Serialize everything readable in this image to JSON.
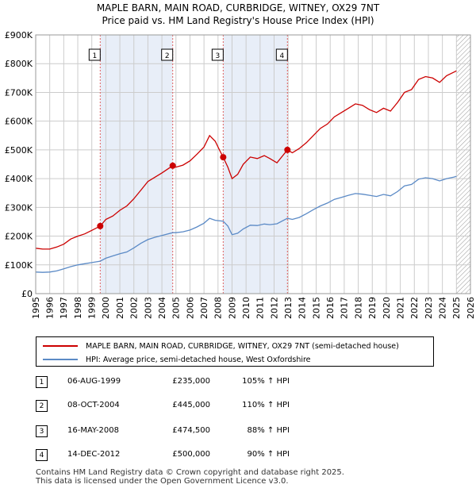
{
  "title_line1": "MAPLE BARN, MAIN ROAD, CURBRIDGE, WITNEY, OX29 7NT",
  "title_line2": "Price paid vs. HM Land Registry's House Price Index (HPI)",
  "colors": {
    "property": "#cc0000",
    "hpi": "#5b8ac6",
    "shade": "#e8eef8",
    "grid": "#cccccc",
    "marker_line": "#e06060"
  },
  "chart_data": {
    "type": "line",
    "title": "Price paid vs. HM Land Registry's House Price Index (HPI)",
    "xlim": [
      1995,
      2026
    ],
    "ylim": [
      0,
      900000
    ],
    "x_ticks": [
      "1995",
      "1996",
      "1997",
      "1998",
      "1999",
      "2000",
      "2001",
      "2002",
      "2003",
      "2004",
      "2005",
      "2006",
      "2007",
      "2008",
      "2009",
      "2010",
      "2011",
      "2012",
      "2013",
      "2014",
      "2015",
      "2016",
      "2017",
      "2018",
      "2019",
      "2020",
      "2021",
      "2022",
      "2023",
      "2024",
      "2025",
      "2026"
    ],
    "y_ticks": [
      {
        "value": 0,
        "label": "£0"
      },
      {
        "value": 100000,
        "label": "£100K"
      },
      {
        "value": 200000,
        "label": "£200K"
      },
      {
        "value": 300000,
        "label": "£300K"
      },
      {
        "value": 400000,
        "label": "£400K"
      },
      {
        "value": 500000,
        "label": "£500K"
      },
      {
        "value": 600000,
        "label": "£600K"
      },
      {
        "value": 700000,
        "label": "£700K"
      },
      {
        "value": 800000,
        "label": "£800K"
      },
      {
        "value": 900000,
        "label": "£900K"
      }
    ],
    "series": [
      {
        "name": "MAPLE BARN, MAIN ROAD, CURBRIDGE, WITNEY, OX29 7NT (semi-detached house)",
        "color": "#cc0000",
        "points": [
          [
            1995.0,
            158000
          ],
          [
            1995.5,
            155000
          ],
          [
            1996.0,
            155000
          ],
          [
            1996.5,
            162000
          ],
          [
            1997.0,
            172000
          ],
          [
            1997.5,
            190000
          ],
          [
            1998.0,
            200000
          ],
          [
            1998.5,
            208000
          ],
          [
            1999.0,
            220000
          ],
          [
            1999.6,
            235000
          ],
          [
            2000.0,
            258000
          ],
          [
            2000.5,
            270000
          ],
          [
            2001.0,
            290000
          ],
          [
            2001.5,
            305000
          ],
          [
            2002.0,
            330000
          ],
          [
            2002.5,
            360000
          ],
          [
            2003.0,
            390000
          ],
          [
            2003.5,
            405000
          ],
          [
            2004.0,
            420000
          ],
          [
            2004.77,
            445000
          ],
          [
            2005.0,
            440000
          ],
          [
            2005.5,
            447000
          ],
          [
            2006.0,
            462000
          ],
          [
            2006.5,
            485000
          ],
          [
            2007.0,
            510000
          ],
          [
            2007.4,
            550000
          ],
          [
            2007.8,
            530000
          ],
          [
            2008.1,
            500000
          ],
          [
            2008.37,
            474500
          ],
          [
            2008.7,
            440000
          ],
          [
            2009.0,
            400000
          ],
          [
            2009.4,
            415000
          ],
          [
            2009.8,
            450000
          ],
          [
            2010.3,
            475000
          ],
          [
            2010.8,
            470000
          ],
          [
            2011.3,
            480000
          ],
          [
            2011.7,
            470000
          ],
          [
            2012.2,
            455000
          ],
          [
            2012.95,
            500000
          ],
          [
            2013.3,
            490000
          ],
          [
            2013.8,
            505000
          ],
          [
            2014.3,
            525000
          ],
          [
            2014.8,
            550000
          ],
          [
            2015.3,
            575000
          ],
          [
            2015.8,
            590000
          ],
          [
            2016.3,
            615000
          ],
          [
            2016.8,
            630000
          ],
          [
            2017.3,
            645000
          ],
          [
            2017.8,
            660000
          ],
          [
            2018.3,
            655000
          ],
          [
            2018.8,
            640000
          ],
          [
            2019.3,
            630000
          ],
          [
            2019.8,
            645000
          ],
          [
            2020.3,
            635000
          ],
          [
            2020.8,
            665000
          ],
          [
            2021.3,
            700000
          ],
          [
            2021.8,
            710000
          ],
          [
            2022.3,
            745000
          ],
          [
            2022.8,
            755000
          ],
          [
            2023.3,
            750000
          ],
          [
            2023.8,
            735000
          ],
          [
            2024.3,
            758000
          ],
          [
            2024.8,
            770000
          ],
          [
            2025.0,
            775000
          ]
        ]
      },
      {
        "name": "HPI: Average price, semi-detached house, West Oxfordshire",
        "color": "#5b8ac6",
        "points": [
          [
            1995.0,
            75000
          ],
          [
            1995.5,
            74000
          ],
          [
            1996.0,
            75000
          ],
          [
            1996.5,
            79000
          ],
          [
            1997.0,
            86000
          ],
          [
            1997.5,
            94000
          ],
          [
            1998.0,
            100000
          ],
          [
            1998.5,
            104000
          ],
          [
            1999.0,
            108000
          ],
          [
            1999.6,
            113000
          ],
          [
            2000.0,
            123000
          ],
          [
            2000.5,
            131000
          ],
          [
            2001.0,
            139000
          ],
          [
            2001.5,
            145000
          ],
          [
            2002.0,
            159000
          ],
          [
            2002.5,
            175000
          ],
          [
            2003.0,
            188000
          ],
          [
            2003.5,
            196000
          ],
          [
            2004.0,
            202000
          ],
          [
            2004.77,
            212000
          ],
          [
            2005.0,
            212000
          ],
          [
            2005.5,
            215000
          ],
          [
            2006.0,
            221000
          ],
          [
            2006.5,
            232000
          ],
          [
            2007.0,
            245000
          ],
          [
            2007.4,
            262000
          ],
          [
            2007.8,
            255000
          ],
          [
            2008.37,
            252000
          ],
          [
            2008.7,
            235000
          ],
          [
            2009.0,
            205000
          ],
          [
            2009.4,
            210000
          ],
          [
            2009.8,
            225000
          ],
          [
            2010.3,
            238000
          ],
          [
            2010.8,
            237000
          ],
          [
            2011.3,
            242000
          ],
          [
            2011.7,
            240000
          ],
          [
            2012.2,
            243000
          ],
          [
            2012.95,
            262000
          ],
          [
            2013.3,
            258000
          ],
          [
            2013.8,
            265000
          ],
          [
            2014.3,
            278000
          ],
          [
            2014.8,
            292000
          ],
          [
            2015.3,
            305000
          ],
          [
            2015.8,
            315000
          ],
          [
            2016.3,
            328000
          ],
          [
            2016.8,
            335000
          ],
          [
            2017.3,
            342000
          ],
          [
            2017.8,
            348000
          ],
          [
            2018.3,
            346000
          ],
          [
            2018.8,
            342000
          ],
          [
            2019.3,
            338000
          ],
          [
            2019.8,
            345000
          ],
          [
            2020.3,
            340000
          ],
          [
            2020.8,
            355000
          ],
          [
            2021.3,
            375000
          ],
          [
            2021.8,
            380000
          ],
          [
            2022.3,
            398000
          ],
          [
            2022.8,
            403000
          ],
          [
            2023.3,
            400000
          ],
          [
            2023.8,
            392000
          ],
          [
            2024.3,
            400000
          ],
          [
            2024.8,
            405000
          ],
          [
            2025.0,
            408000
          ]
        ]
      }
    ],
    "sales": [
      {
        "label": "1",
        "x": 1999.6,
        "price": 235000
      },
      {
        "label": "2",
        "x": 2004.77,
        "price": 445000
      },
      {
        "label": "3",
        "x": 2008.37,
        "price": 474500
      },
      {
        "label": "4",
        "x": 2012.95,
        "price": 500000
      }
    ],
    "shaded_periods": [
      [
        1999.6,
        2004.77
      ],
      [
        2008.37,
        2012.95
      ]
    ],
    "hatch_from": 2025.0
  },
  "legend": {
    "property_label": "MAPLE BARN, MAIN ROAD, CURBRIDGE, WITNEY, OX29 7NT (semi-detached house)",
    "hpi_label": "HPI: Average price, semi-detached house, West Oxfordshire"
  },
  "sales_table": [
    {
      "num": "1",
      "date": "06-AUG-1999",
      "price": "£235,000",
      "hpi": "105% ↑ HPI"
    },
    {
      "num": "2",
      "date": "08-OCT-2004",
      "price": "£445,000",
      "hpi": "110% ↑ HPI"
    },
    {
      "num": "3",
      "date": "16-MAY-2008",
      "price": "£474,500",
      "hpi": "88% ↑ HPI"
    },
    {
      "num": "4",
      "date": "14-DEC-2012",
      "price": "£500,000",
      "hpi": "90% ↑ HPI"
    }
  ],
  "footer_line1": "Contains HM Land Registry data © Crown copyright and database right 2025.",
  "footer_line2": "This data is licensed under the Open Government Licence v3.0."
}
